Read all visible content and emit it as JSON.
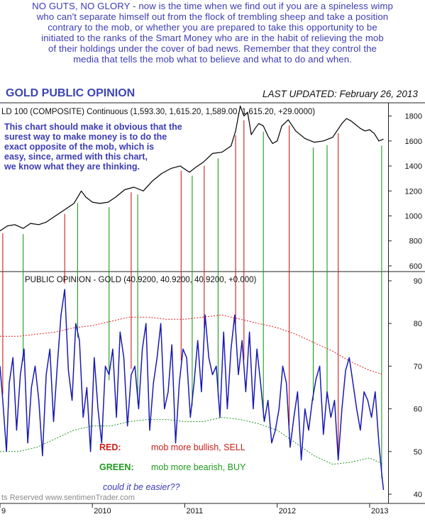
{
  "intro_lines": [
    "NO GUTS, NO GLORY - now is the time when we find out if you are a spineless wimp",
    "who can't separate himself out from the flock of trembling sheep and take a position",
    "contrary to the mob, or whether you are prepared to take this opportunity to be",
    "initiated to the ranks of the Smart Money who are in the habit of relieving the mob",
    "of their holdings under the cover of bad news. Remember that they control the",
    "media that tells the mob what to believe and what to do and when."
  ],
  "chart_data": {
    "type": "line",
    "title": "GOLD PUBLIC OPINION",
    "updated": "LAST UPDATED:  February 26, 2013",
    "x_tick_labels": [
      "9",
      "2010",
      "2011",
      "2012",
      "2013"
    ],
    "x_tick_dates": [
      2009.0,
      2010.0,
      2011.0,
      2012.0,
      2013.0
    ],
    "x_range": [
      2009.0,
      2013.2
    ],
    "colors": {
      "price": "#000000",
      "opinion": "#1a1ab4",
      "upper_band": "#e0201c",
      "lower_band": "#1a9a1a",
      "sell_line": "#c8201c",
      "buy_line": "#1e9a1e",
      "title": "#3c46b4",
      "annotation": "#3c3cb4"
    },
    "upper_panel": {
      "label": "LD 100 (COMPOSITE) Continuous (1,593.30, 1,615.20, 1,589.00, 1,615.20, +29.0000)",
      "annotation_lines": [
        "This chart should make it obvious that the",
        "surest way to make money is to do the",
        "exact opposite of the mob, which is",
        "easy, since, armed with this chart,",
        "we know what they are thinking."
      ],
      "y_ticks": [
        "1800",
        "1600",
        "1400",
        "1200",
        "1000",
        "800",
        "600"
      ],
      "y_tick_values": [
        1800,
        1600,
        1400,
        1200,
        1000,
        800,
        600
      ],
      "y_range": [
        560,
        1900
      ],
      "series": {
        "x": [
          2009.0,
          2009.08,
          2009.16,
          2009.25,
          2009.33,
          2009.42,
          2009.5,
          2009.6,
          2009.7,
          2009.8,
          2009.88,
          2009.93,
          2010.0,
          2010.08,
          2010.17,
          2010.25,
          2010.35,
          2010.45,
          2010.55,
          2010.65,
          2010.75,
          2010.85,
          2010.95,
          2011.05,
          2011.12,
          2011.2,
          2011.3,
          2011.4,
          2011.5,
          2011.55,
          2011.6,
          2011.64,
          2011.68,
          2011.72,
          2011.76,
          2011.8,
          2011.85,
          2011.9,
          2011.95,
          2012.0,
          2012.05,
          2012.12,
          2012.2,
          2012.3,
          2012.4,
          2012.5,
          2012.6,
          2012.7,
          2012.75,
          2012.8,
          2012.85,
          2012.9,
          2012.95,
          2013.0,
          2013.05,
          2013.1,
          2013.15
        ],
        "values": [
          880,
          920,
          930,
          900,
          940,
          930,
          950,
          1000,
          1050,
          1100,
          1200,
          1150,
          1110,
          1100,
          1110,
          1150,
          1210,
          1230,
          1200,
          1280,
          1340,
          1380,
          1400,
          1350,
          1390,
          1430,
          1500,
          1510,
          1560,
          1680,
          1880,
          1800,
          1830,
          1650,
          1700,
          1740,
          1720,
          1640,
          1580,
          1600,
          1720,
          1770,
          1680,
          1620,
          1590,
          1600,
          1630,
          1740,
          1780,
          1760,
          1730,
          1700,
          1680,
          1690,
          1660,
          1600,
          1615
        ]
      }
    },
    "lower_panel": {
      "label": "PUBLIC OPINION - GOLD (40.9200, 40.9200, 40.9200, +0.000)",
      "y_ticks": [
        "90",
        "80",
        "70",
        "60",
        "50",
        "40"
      ],
      "y_tick_values": [
        90,
        80,
        70,
        60,
        50,
        40
      ],
      "y_range": [
        38,
        92
      ],
      "upper_band": {
        "x": [
          2009.0,
          2009.2,
          2009.4,
          2009.6,
          2009.8,
          2010.0,
          2010.2,
          2010.4,
          2010.6,
          2010.8,
          2011.0,
          2011.2,
          2011.4,
          2011.6,
          2011.8,
          2012.0,
          2012.2,
          2012.4,
          2012.6,
          2012.8,
          2013.0,
          2013.15
        ],
        "values": [
          77,
          77,
          77.5,
          78,
          79,
          79.5,
          80.5,
          81.5,
          81.5,
          81,
          81,
          81.5,
          82,
          81,
          80,
          79,
          77.5,
          75.5,
          73.5,
          71,
          69,
          68
        ]
      },
      "lower_band": {
        "x": [
          2009.0,
          2009.2,
          2009.4,
          2009.6,
          2009.8,
          2010.0,
          2010.2,
          2010.4,
          2010.6,
          2010.8,
          2011.0,
          2011.2,
          2011.4,
          2011.6,
          2011.8,
          2012.0,
          2012.2,
          2012.4,
          2012.6,
          2012.8,
          2013.0,
          2013.15
        ],
        "values": [
          50,
          50,
          51,
          53,
          55,
          56,
          56,
          57,
          57.5,
          57.5,
          57,
          57,
          58,
          57.5,
          56.5,
          55,
          52,
          49,
          47,
          47.5,
          48.5,
          47
        ]
      },
      "opinion": {
        "x": [
          2009.0,
          2009.03,
          2009.07,
          2009.1,
          2009.14,
          2009.18,
          2009.22,
          2009.26,
          2009.3,
          2009.34,
          2009.38,
          2009.42,
          2009.46,
          2009.5,
          2009.54,
          2009.58,
          2009.62,
          2009.66,
          2009.7,
          2009.74,
          2009.78,
          2009.82,
          2009.86,
          2009.9,
          2009.94,
          2009.98,
          2010.02,
          2010.06,
          2010.1,
          2010.14,
          2010.18,
          2010.22,
          2010.26,
          2010.3,
          2010.34,
          2010.38,
          2010.42,
          2010.46,
          2010.5,
          2010.54,
          2010.58,
          2010.62,
          2010.66,
          2010.7,
          2010.74,
          2010.78,
          2010.82,
          2010.86,
          2010.9,
          2010.94,
          2010.98,
          2011.02,
          2011.06,
          2011.1,
          2011.14,
          2011.18,
          2011.22,
          2011.26,
          2011.3,
          2011.34,
          2011.38,
          2011.42,
          2011.46,
          2011.5,
          2011.54,
          2011.58,
          2011.62,
          2011.66,
          2011.7,
          2011.74,
          2011.78,
          2011.82,
          2011.86,
          2011.9,
          2011.94,
          2011.98,
          2012.02,
          2012.06,
          2012.1,
          2012.14,
          2012.18,
          2012.22,
          2012.26,
          2012.3,
          2012.34,
          2012.38,
          2012.42,
          2012.46,
          2012.5,
          2012.54,
          2012.58,
          2012.62,
          2012.66,
          2012.7,
          2012.74,
          2012.78,
          2012.82,
          2012.86,
          2012.9,
          2012.94,
          2012.98,
          2013.02,
          2013.06,
          2013.1,
          2013.13,
          2013.15
        ],
        "values": [
          70,
          62,
          50,
          66,
          72,
          55,
          68,
          74,
          52,
          65,
          70,
          62,
          49,
          68,
          74,
          57,
          70,
          82,
          88,
          69,
          62,
          80,
          76,
          58,
          65,
          50,
          72,
          60,
          52,
          70,
          68,
          74,
          58,
          78,
          72,
          56,
          68,
          70,
          60,
          74,
          80,
          55,
          66,
          72,
          80,
          60,
          64,
          75,
          52,
          66,
          74,
          72,
          58,
          66,
          76,
          64,
          82,
          72,
          68,
          70,
          58,
          78,
          60,
          74,
          82,
          68,
          76,
          64,
          78,
          60,
          74,
          66,
          57,
          62,
          52,
          55,
          60,
          70,
          66,
          51,
          58,
          64,
          48,
          60,
          55,
          62,
          67,
          70,
          54,
          64,
          58,
          62,
          48,
          60,
          69,
          72,
          66,
          60,
          55,
          64,
          62,
          58,
          64,
          52,
          45,
          41
        ]
      },
      "legend": [
        {
          "key": "RED:",
          "text": "mob more bullish, SELL",
          "color": "#c8201c"
        },
        {
          "key": "GREEN:",
          "text": "mob more bearish, BUY",
          "color": "#1e9a1e"
        }
      ],
      "question": "could it be easier??",
      "copyright": "ts Reserved  www.sentimenTrader.com"
    },
    "signals": {
      "sell_dates": [
        2009.03,
        2009.7,
        2010.42,
        2010.96,
        2011.21,
        2011.55,
        2011.64,
        2012.13,
        2012.66
      ],
      "buy_dates": [
        2009.25,
        2009.84,
        2010.18,
        2010.49,
        2011.08,
        2011.36,
        2011.85,
        2012.39,
        2012.54,
        2013.13
      ]
    },
    "grid": false
  }
}
